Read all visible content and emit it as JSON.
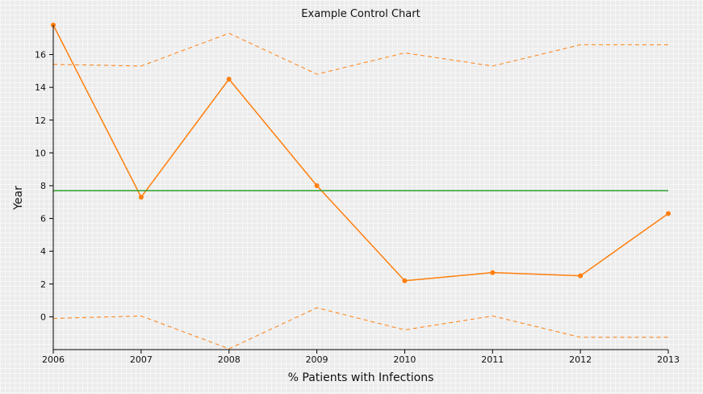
{
  "chart_data": {
    "type": "line",
    "title": "Example Control Chart",
    "xlabel": "% Patients with Infections",
    "ylabel": "Year",
    "x": [
      2006,
      2007,
      2008,
      2009,
      2010,
      2011,
      2012,
      2013
    ],
    "xlim": [
      2006,
      2013
    ],
    "ylim": [
      -2,
      17.8
    ],
    "yticks": [
      0,
      2,
      4,
      6,
      8,
      10,
      12,
      14,
      16
    ],
    "grid": false,
    "legend": "none",
    "series": [
      {
        "role": "data",
        "style": "solid-with-markers",
        "color": "#ff7f0e",
        "values": [
          17.8,
          7.3,
          14.5,
          8.0,
          2.2,
          2.7,
          2.5,
          6.3
        ]
      },
      {
        "role": "center-line",
        "style": "solid",
        "color": "#2ca02c",
        "values": [
          7.7,
          7.7,
          7.7,
          7.7,
          7.7,
          7.7,
          7.7,
          7.7
        ]
      },
      {
        "role": "upper-control-limit",
        "style": "dashed",
        "color": "#ff7f0e",
        "values": [
          15.4,
          15.3,
          17.3,
          14.8,
          16.1,
          15.3,
          16.6,
          16.6
        ]
      },
      {
        "role": "lower-control-limit",
        "style": "dashed",
        "color": "#ff7f0e",
        "values": [
          -0.1,
          0.05,
          -1.95,
          0.55,
          -0.8,
          0.05,
          -1.25,
          -1.25
        ]
      }
    ]
  }
}
